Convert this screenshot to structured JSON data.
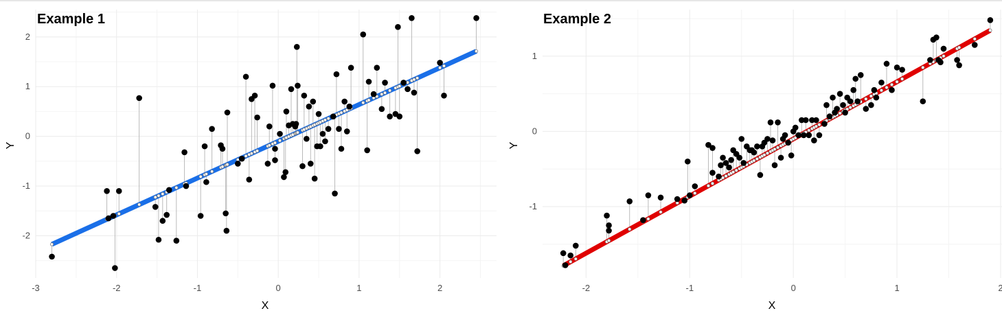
{
  "chart_data": [
    {
      "type": "scatter",
      "title": "Example 1",
      "xlabel": "X",
      "ylabel": "Y",
      "xlim": [
        -3.0,
        2.7
      ],
      "ylim": [
        -2.85,
        2.55
      ],
      "xticks": [
        -3,
        -2,
        -1,
        0,
        1,
        2
      ],
      "yticks": [
        -2,
        -1,
        0,
        1,
        2
      ],
      "grid": true,
      "legend": "none",
      "fit_line": {
        "intercept": -0.1,
        "slope": 0.74,
        "x_range": [
          -2.8,
          2.45
        ],
        "color": "#1a6fe8"
      },
      "residual_segments": true,
      "points": {
        "x": [
          -2.8,
          -2.12,
          -2.1,
          -2.04,
          -2.02,
          -1.97,
          -1.72,
          -1.52,
          -1.48,
          -1.43,
          -1.38,
          -1.35,
          -1.26,
          -1.16,
          -1.14,
          -0.96,
          -0.91,
          -0.89,
          -0.82,
          -0.71,
          -0.69,
          -0.65,
          -0.64,
          -0.63,
          -0.5,
          -0.45,
          -0.4,
          -0.36,
          -0.33,
          -0.29,
          -0.26,
          -0.13,
          -0.11,
          -0.07,
          -0.04,
          -0.04,
          0.02,
          0.07,
          0.09,
          0.1,
          0.13,
          0.16,
          0.18,
          0.21,
          0.22,
          0.23,
          0.24,
          0.3,
          0.32,
          0.35,
          0.38,
          0.4,
          0.43,
          0.45,
          0.48,
          0.5,
          0.52,
          0.55,
          0.58,
          0.62,
          0.68,
          0.7,
          0.72,
          0.75,
          0.78,
          0.82,
          0.85,
          0.88,
          0.9,
          1.05,
          1.1,
          1.12,
          1.18,
          1.22,
          1.28,
          1.32,
          1.38,
          1.45,
          1.48,
          1.5,
          1.55,
          1.6,
          1.65,
          1.68,
          1.72,
          2.0,
          2.05,
          2.45
        ],
        "y": [
          -2.42,
          -1.1,
          -1.65,
          -1.6,
          -2.65,
          -1.1,
          0.77,
          -1.42,
          -2.08,
          -1.7,
          -1.58,
          -1.08,
          -2.1,
          -0.32,
          -1.0,
          -1.6,
          -0.2,
          -0.92,
          0.15,
          -0.18,
          -0.25,
          -1.55,
          -1.9,
          0.48,
          -0.55,
          -0.45,
          1.2,
          -0.87,
          0.75,
          0.82,
          0.38,
          -0.55,
          0.2,
          1.02,
          -0.25,
          -0.48,
          0.05,
          -0.82,
          -0.72,
          0.5,
          0.22,
          0.95,
          0.25,
          0.2,
          0.25,
          1.8,
          1.02,
          -0.6,
          0.82,
          -0.05,
          0.6,
          -0.55,
          0.7,
          -0.85,
          -0.2,
          0.45,
          -0.2,
          0.05,
          -0.1,
          0.15,
          0.4,
          -1.15,
          1.25,
          0.15,
          -0.25,
          0.7,
          0.1,
          0.6,
          1.38,
          2.05,
          -0.28,
          1.1,
          0.85,
          1.38,
          0.55,
          1.08,
          0.4,
          0.45,
          2.2,
          0.4,
          1.08,
          0.95,
          2.38,
          0.88,
          -0.3,
          1.48,
          0.82,
          2.38
        ]
      }
    },
    {
      "type": "scatter",
      "title": "Example 2",
      "xlabel": "X",
      "ylabel": "Y",
      "xlim": [
        -2.42,
        2.02
      ],
      "ylim": [
        -1.95,
        1.62
      ],
      "xticks": [
        -2,
        -1,
        0,
        1,
        2
      ],
      "yticks": [
        -1,
        0,
        1
      ],
      "grid": true,
      "legend": "none",
      "fit_line": {
        "intercept": -0.1,
        "slope": 0.76,
        "x_range": [
          -2.22,
          1.9
        ],
        "color": "#e00000"
      },
      "residual_segments": true,
      "points": {
        "x": [
          -2.22,
          -2.2,
          -2.15,
          -2.1,
          -1.8,
          -1.78,
          -1.78,
          -1.58,
          -1.45,
          -1.4,
          -1.28,
          -1.12,
          -1.05,
          -1.02,
          -1.0,
          -0.95,
          -0.82,
          -0.78,
          -0.78,
          -0.72,
          -0.7,
          -0.68,
          -0.65,
          -0.62,
          -0.6,
          -0.58,
          -0.55,
          -0.52,
          -0.5,
          -0.48,
          -0.45,
          -0.42,
          -0.4,
          -0.38,
          -0.35,
          -0.32,
          -0.3,
          -0.28,
          -0.25,
          -0.22,
          -0.2,
          -0.18,
          -0.15,
          -0.12,
          -0.1,
          -0.08,
          -0.05,
          -0.02,
          0.0,
          0.02,
          0.05,
          0.08,
          0.1,
          0.12,
          0.15,
          0.18,
          0.2,
          0.22,
          0.25,
          0.3,
          0.32,
          0.35,
          0.38,
          0.4,
          0.42,
          0.45,
          0.48,
          0.5,
          0.52,
          0.55,
          0.58,
          0.6,
          0.62,
          0.65,
          0.7,
          0.75,
          0.78,
          0.8,
          0.85,
          0.9,
          0.95,
          1.0,
          1.05,
          1.25,
          1.32,
          1.35,
          1.38,
          1.4,
          1.42,
          1.45,
          1.58,
          1.6,
          1.75,
          1.9
        ],
        "y": [
          -1.62,
          -1.78,
          -1.65,
          -1.52,
          -1.12,
          -1.25,
          -1.32,
          -0.93,
          -1.18,
          -0.85,
          -0.88,
          -0.9,
          -0.92,
          -0.4,
          -0.85,
          -0.73,
          -0.18,
          -0.22,
          -0.55,
          -0.6,
          -0.45,
          -0.35,
          -0.42,
          -0.48,
          -0.38,
          -0.25,
          -0.3,
          -0.35,
          -0.1,
          -0.42,
          -0.2,
          -0.25,
          -0.25,
          -0.28,
          -0.2,
          -0.58,
          -0.2,
          -0.15,
          -0.1,
          0.12,
          -0.12,
          -0.45,
          0.12,
          -0.35,
          -0.1,
          -0.05,
          -0.15,
          -0.32,
          0.0,
          0.05,
          -0.05,
          0.15,
          -0.05,
          0.15,
          -0.05,
          0.15,
          -0.12,
          0.15,
          -0.05,
          0.1,
          0.35,
          0.2,
          0.45,
          0.25,
          0.3,
          0.5,
          0.35,
          0.25,
          0.45,
          0.4,
          0.55,
          0.7,
          0.4,
          0.75,
          0.3,
          0.35,
          0.55,
          0.45,
          0.65,
          0.9,
          0.55,
          0.85,
          0.82,
          0.4,
          0.95,
          1.22,
          1.25,
          0.95,
          0.92,
          1.1,
          0.95,
          0.88,
          1.15,
          1.48
        ]
      }
    }
  ]
}
